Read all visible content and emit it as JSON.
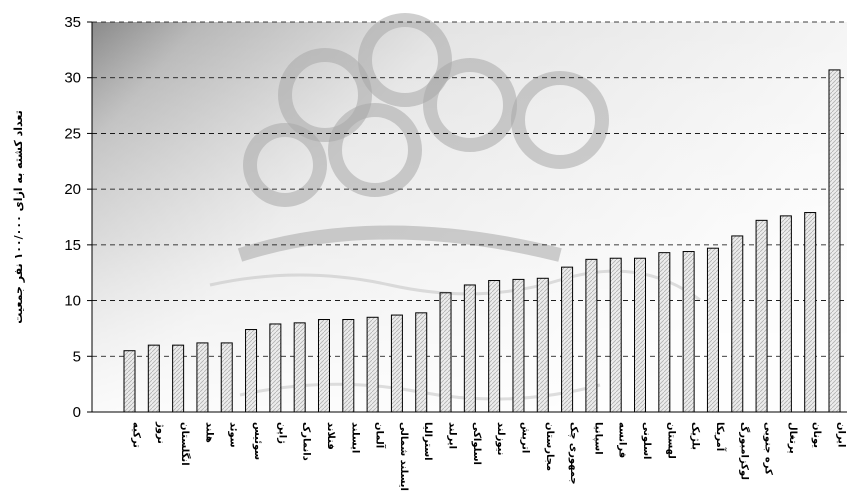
{
  "chart_data": {
    "type": "bar",
    "ylabel": "تعداد کشته به ازای ۱۰۰/۰۰۰ نفر جمعیت",
    "ylim": [
      0,
      35
    ],
    "yticks": [
      0,
      5,
      10,
      15,
      20,
      25,
      30,
      35
    ],
    "grid": "horizontal-dashed",
    "categories": [
      "ترکیه",
      "نروژ",
      "انگلستان",
      "هلند",
      "سوئد",
      "سوئیس",
      "ژاپن",
      "دانمارک",
      "فنلاند",
      "ایسلند",
      "آلمان",
      "ایسلند شمالی",
      "استرالیا",
      "ایرلند",
      "اسلواکی",
      "نیوزلند",
      "اتریش",
      "مجارستان",
      "جمهوری چک",
      "اسپانیا",
      "فرانسه",
      "اسلونی",
      "لهستان",
      "بلژیک",
      "آمریکا",
      "لوکزامبورگ",
      "کره جنوبی",
      "پرتغال",
      "یونان",
      "ایران"
    ],
    "values": [
      5.5,
      6.0,
      6.0,
      6.2,
      6.2,
      7.4,
      7.9,
      8.0,
      8.3,
      8.3,
      8.5,
      8.7,
      8.9,
      10.7,
      11.4,
      11.8,
      11.9,
      12.0,
      13.0,
      13.7,
      13.8,
      13.8,
      14.3,
      14.4,
      14.7,
      15.8,
      17.2,
      17.6,
      17.9,
      30.7
    ]
  }
}
